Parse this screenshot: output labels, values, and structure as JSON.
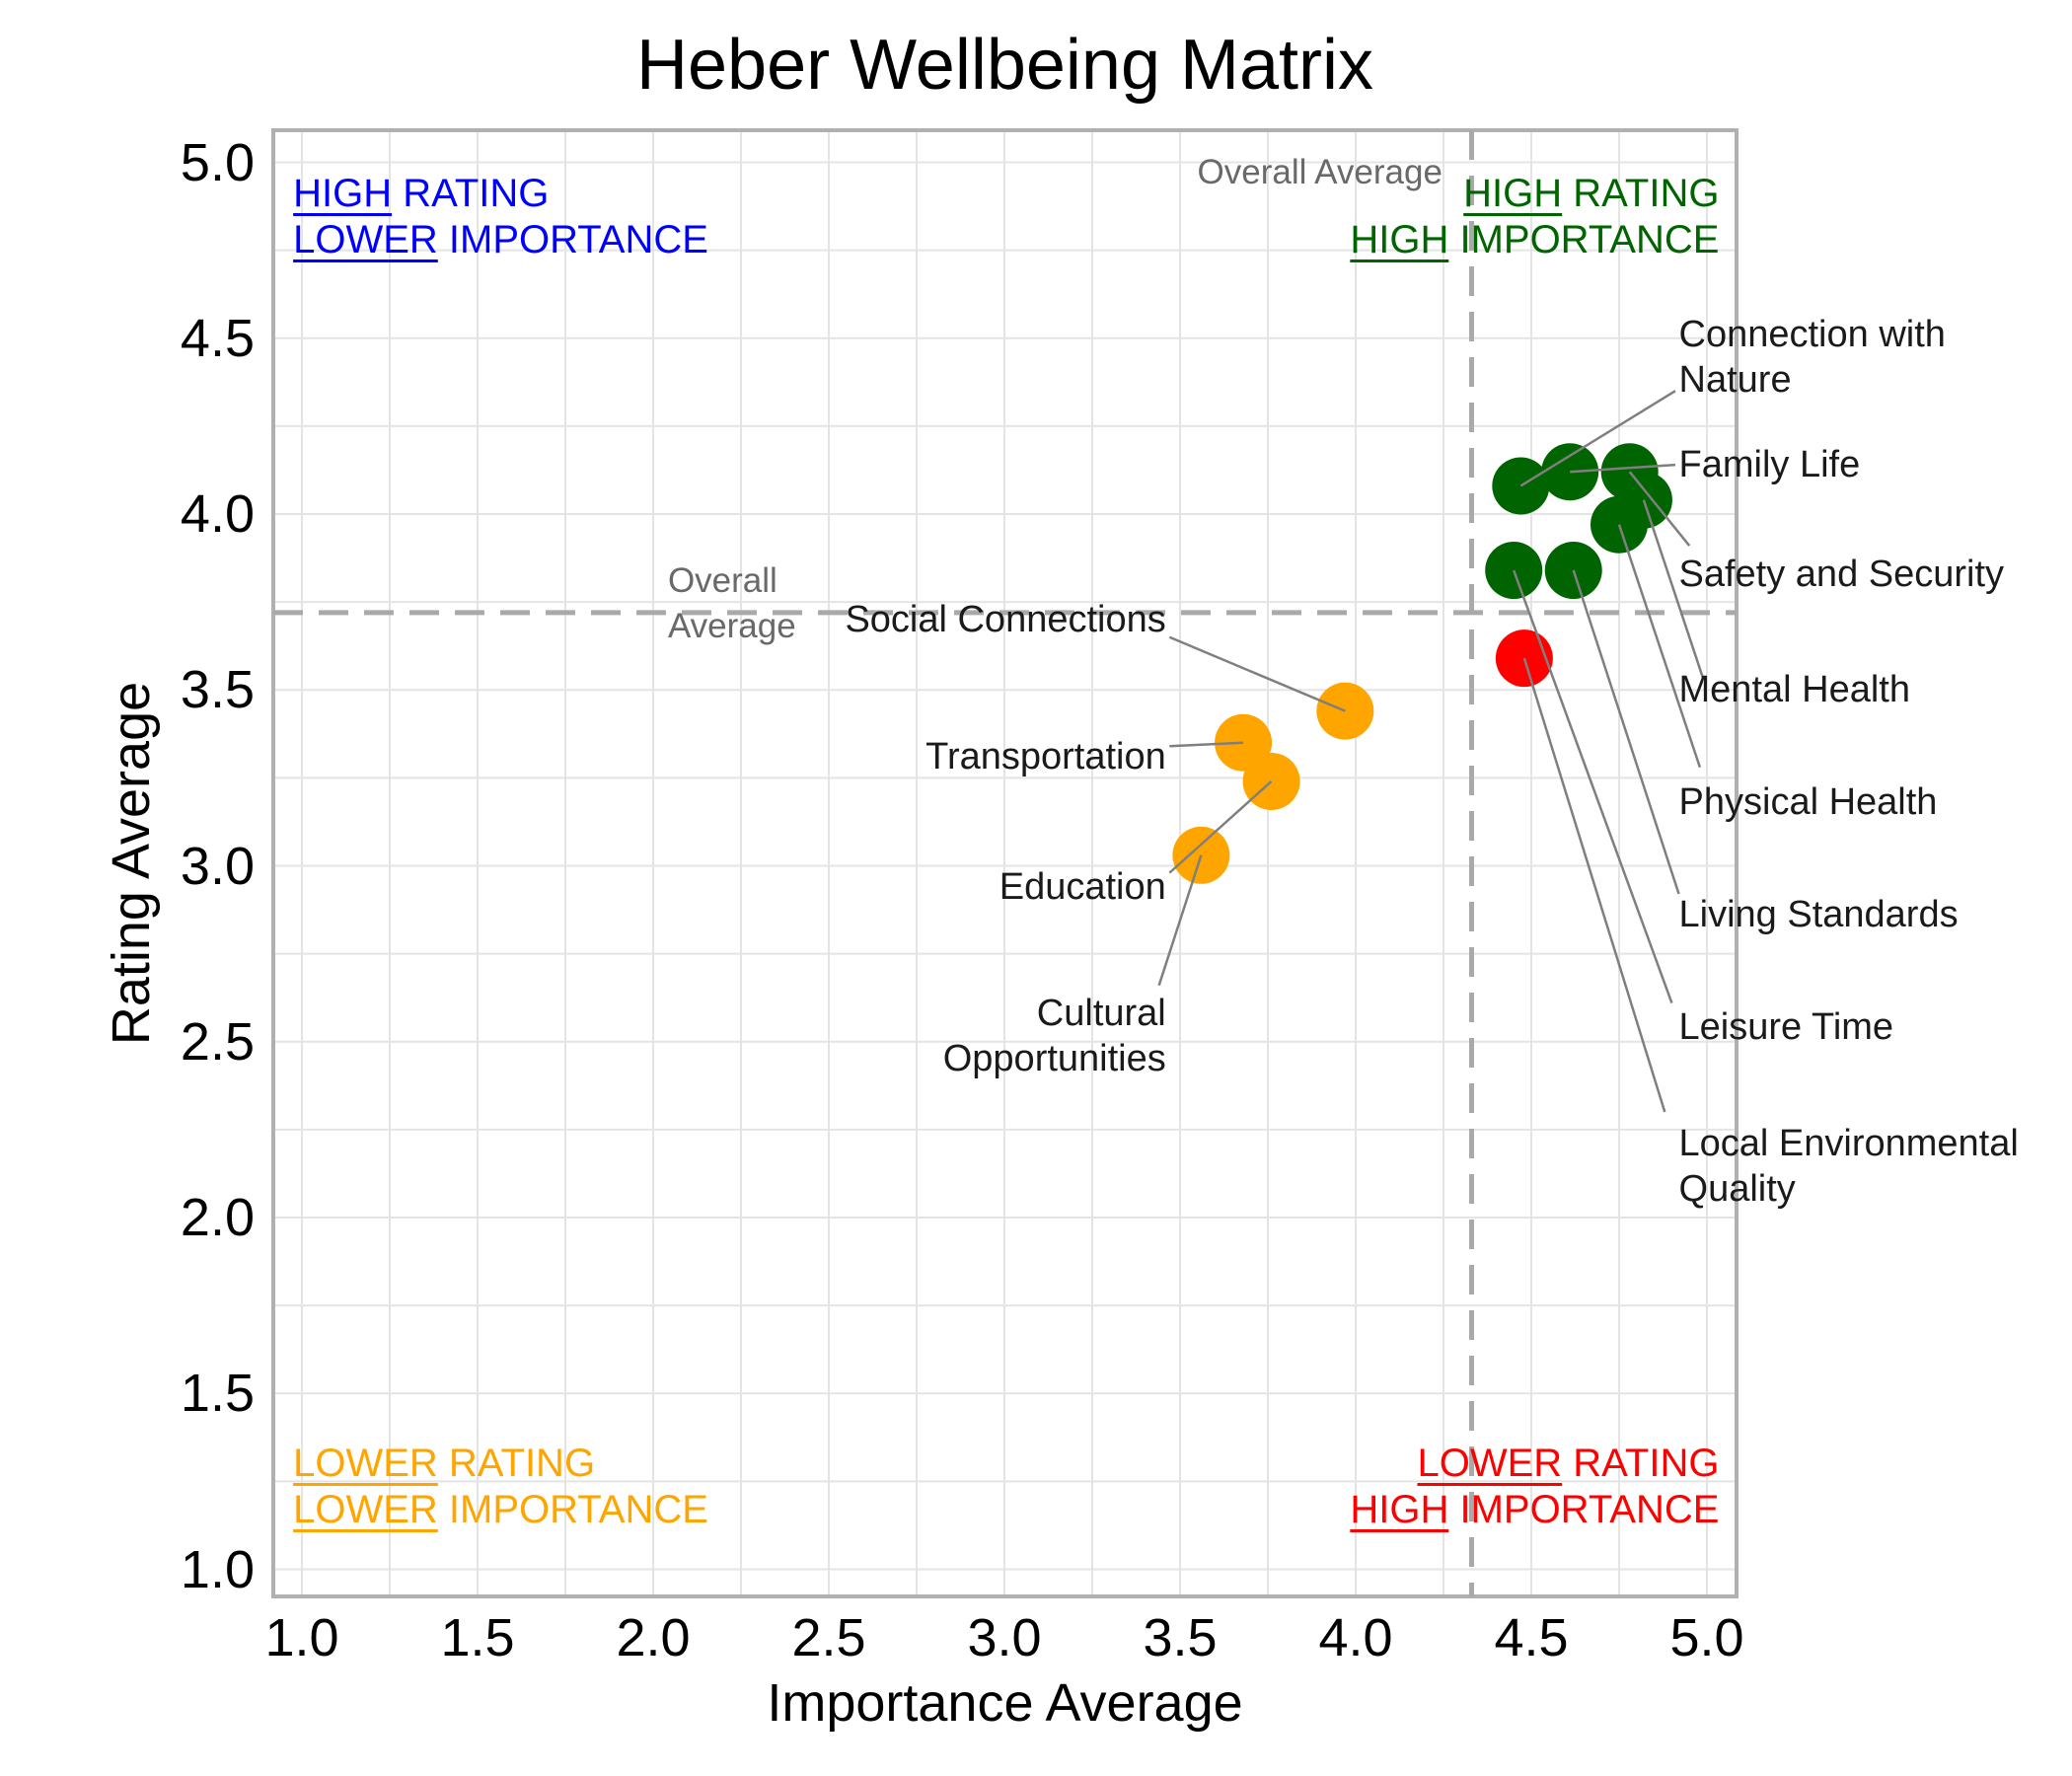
{
  "title": "Heber Wellbeing Matrix",
  "chart_data": {
    "type": "scatter",
    "title": "Heber Wellbeing Matrix",
    "xlabel": "Importance Average",
    "ylabel": "Rating Average",
    "xlim": [
      0.92,
      5.08
    ],
    "ylim": [
      0.92,
      5.09
    ],
    "grid": "on",
    "grid_step": 0.25,
    "x_tick_labels": [
      "1.0",
      "1.5",
      "2.0",
      "2.5",
      "3.0",
      "3.5",
      "4.0",
      "4.5",
      "5.0"
    ],
    "y_tick_labels": [
      "5.0",
      "4.5",
      "4.0",
      "3.5",
      "3.0",
      "2.5",
      "2.0",
      "1.5",
      "1.0"
    ],
    "overall_average": {
      "importance": 4.33,
      "rating": 3.72,
      "top_label": "Overall Average",
      "left_label_lines": [
        "Overall",
        "Average"
      ],
      "line_color": "#a9a9a9",
      "text_color": "#696969"
    },
    "series": [
      {
        "name": "high rating / high importance",
        "color": "#006400",
        "points": [
          {
            "label": "Connection with Nature",
            "x": 4.47,
            "y": 4.08,
            "label_lines": [
              "Connection with",
              "Nature"
            ],
            "label_x": 4.92,
            "label_y": 4.51,
            "align": "left",
            "leader_end": {
              "x": 4.91,
              "y": 4.35
            }
          },
          {
            "label": "Family Life",
            "x": 4.61,
            "y": 4.12,
            "label_lines": [
              "Family Life"
            ],
            "label_x": 4.92,
            "label_y": 4.14,
            "align": "left",
            "leader_end": {
              "x": 4.91,
              "y": 4.14
            }
          },
          {
            "label": "Safety and Security",
            "x": 4.78,
            "y": 4.12,
            "label_lines": [
              "Safety and Security"
            ],
            "label_x": 4.92,
            "label_y": 3.83,
            "align": "left",
            "leader_end": {
              "x": 4.95,
              "y": 3.91
            }
          },
          {
            "label": "Mental Health",
            "x": 4.82,
            "y": 4.04,
            "label_lines": [
              "Mental Health"
            ],
            "label_x": 4.92,
            "label_y": 3.5,
            "align": "left",
            "leader_end": {
              "x": 4.99,
              "y": 3.53
            }
          },
          {
            "label": "Physical Health",
            "x": 4.75,
            "y": 3.97,
            "label_lines": [
              "Physical Health"
            ],
            "label_x": 4.92,
            "label_y": 3.18,
            "align": "left",
            "leader_end": {
              "x": 4.98,
              "y": 3.28
            }
          },
          {
            "label": "Living Standards",
            "x": 4.62,
            "y": 3.84,
            "label_lines": [
              "Living Standards"
            ],
            "label_x": 4.92,
            "label_y": 2.86,
            "align": "left",
            "leader_end": {
              "x": 4.92,
              "y": 2.92
            }
          },
          {
            "label": "Leisure Time",
            "x": 4.45,
            "y": 3.84,
            "label_lines": [
              "Leisure Time"
            ],
            "label_x": 4.92,
            "label_y": 2.54,
            "align": "left",
            "leader_end": {
              "x": 4.9,
              "y": 2.61
            }
          }
        ]
      },
      {
        "name": "lower rating / high importance",
        "color": "#ff0000",
        "points": [
          {
            "label": "Local Environmental Quality",
            "x": 4.48,
            "y": 3.59,
            "label_lines": [
              "Local Environmental",
              "Quality"
            ],
            "label_x": 4.92,
            "label_y": 2.21,
            "align": "left",
            "leader_end": {
              "x": 4.88,
              "y": 2.3
            }
          }
        ]
      },
      {
        "name": "lower rating / lower importance",
        "color": "#ffa500",
        "points": [
          {
            "label": "Social Connections",
            "x": 3.97,
            "y": 3.44,
            "label_lines": [
              "Social Connections"
            ],
            "label_x": 3.46,
            "label_y": 3.7,
            "align": "right",
            "leader_end": {
              "x": 3.47,
              "y": 3.65
            }
          },
          {
            "label": "Transportation",
            "x": 3.68,
            "y": 3.35,
            "label_lines": [
              "Transportation"
            ],
            "label_x": 3.46,
            "label_y": 3.31,
            "align": "right",
            "leader_end": {
              "x": 3.47,
              "y": 3.34
            }
          },
          {
            "label": "Education",
            "x": 3.76,
            "y": 3.24,
            "label_lines": [
              "Education"
            ],
            "label_x": 3.46,
            "label_y": 2.94,
            "align": "right",
            "leader_end": {
              "x": 3.47,
              "y": 2.98
            }
          },
          {
            "label": "Cultural Opportunities",
            "x": 3.56,
            "y": 3.03,
            "label_lines": [
              "Cultural",
              "Opportunities"
            ],
            "label_x": 3.46,
            "label_y": 2.58,
            "align": "right",
            "leader_end": {
              "x": 3.44,
              "y": 2.66
            }
          }
        ]
      }
    ],
    "quadrant_labels": {
      "top_left": {
        "color": "#0000ff",
        "x": 0.975,
        "y": 4.91,
        "align": "left",
        "lines": [
          {
            "u": "HIGH",
            "rest": "RATING"
          },
          {
            "u": "LOWER",
            "rest": "IMPORTANCE"
          }
        ]
      },
      "top_right": {
        "color": "#006400",
        "x": 5.035,
        "y": 4.91,
        "align": "right",
        "lines": [
          {
            "u": "HIGH",
            "rest": "RATING"
          },
          {
            "u": "HIGH",
            "rest": "IMPORTANCE"
          }
        ]
      },
      "bottom_left": {
        "color": "#ffa500",
        "x": 0.975,
        "y": 1.3,
        "align": "left",
        "lines": [
          {
            "u": "LOWER",
            "rest": "RATING"
          },
          {
            "u": "LOWER",
            "rest": "IMPORTANCE"
          }
        ]
      },
      "bottom_right": {
        "color": "#ff0000",
        "x": 5.035,
        "y": 1.3,
        "align": "right",
        "lines": [
          {
            "u": "LOWER",
            "rest": "RATING"
          },
          {
            "u": "HIGH",
            "rest": "IMPORTANCE"
          }
        ]
      }
    },
    "style": {
      "grid_color": "#e4e4e4",
      "frame_color": "#b0b0b0",
      "leader_color": "#7f7f7f",
      "dot_radius_px": 29
    }
  }
}
